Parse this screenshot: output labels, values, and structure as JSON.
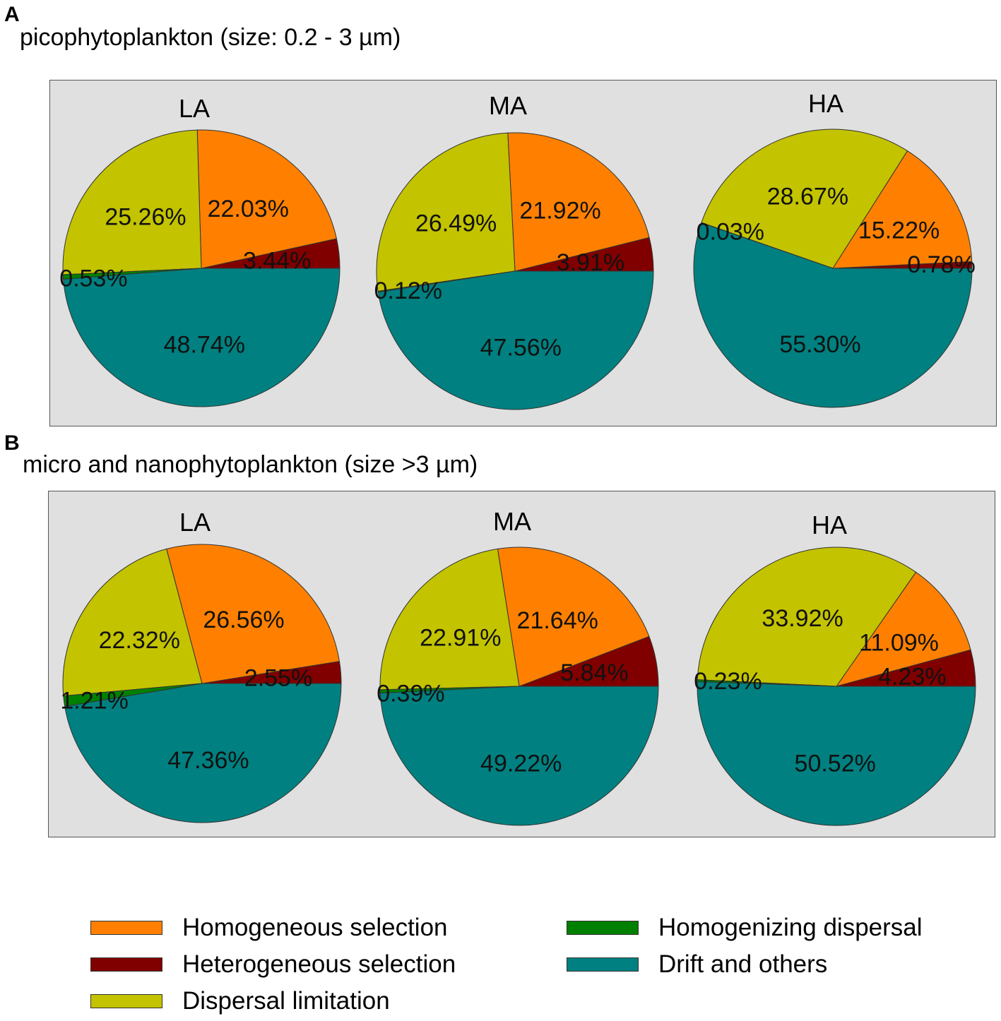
{
  "panels": [
    {
      "letter": "A",
      "title": "picophytoplankton (size: 0.2 - 3 µm)"
    },
    {
      "letter": "B",
      "title": "micro and nanophytoplankton (size >3 µm)"
    }
  ],
  "legend": [
    {
      "label": "Homogeneous selection",
      "color": "#ff8000"
    },
    {
      "label": "Heterogeneous selection",
      "color": "#800000"
    },
    {
      "label": "Dispersal limitation",
      "color": "#c3c300"
    },
    {
      "label": "Homogenizing dispersal",
      "color": "#008000"
    },
    {
      "label": "Drift and others",
      "color": "#008080"
    }
  ],
  "chart_data": [
    {
      "type": "pie",
      "panel": "A",
      "title": "picophytoplankton (size: 0.2 - 3 µm)",
      "pies": [
        {
          "name": "LA",
          "slices": [
            {
              "category": "Homogeneous selection",
              "value": 22.03,
              "label": "22.03%"
            },
            {
              "category": "Heterogeneous selection",
              "value": 3.44,
              "label": "3.44%"
            },
            {
              "category": "Dispersal limitation",
              "value": 25.26,
              "label": "25.26%"
            },
            {
              "category": "Homogenizing dispersal",
              "value": 0.53,
              "label": "0.53%"
            },
            {
              "category": "Drift and others",
              "value": 48.74,
              "label": "48.74%"
            }
          ]
        },
        {
          "name": "MA",
          "slices": [
            {
              "category": "Homogeneous selection",
              "value": 21.92,
              "label": "21.92%"
            },
            {
              "category": "Heterogeneous selection",
              "value": 3.91,
              "label": "3.91%"
            },
            {
              "category": "Dispersal limitation",
              "value": 26.49,
              "label": "26.49%"
            },
            {
              "category": "Homogenizing dispersal",
              "value": 0.12,
              "label": "0.12%"
            },
            {
              "category": "Drift and others",
              "value": 47.56,
              "label": "47.56%"
            }
          ]
        },
        {
          "name": "HA",
          "slices": [
            {
              "category": "Homogeneous selection",
              "value": 15.22,
              "label": "15.22%"
            },
            {
              "category": "Heterogeneous selection",
              "value": 0.78,
              "label": "0.78%"
            },
            {
              "category": "Dispersal limitation",
              "value": 28.67,
              "label": "28.67%"
            },
            {
              "category": "Homogenizing dispersal",
              "value": 0.03,
              "label": "0.03%"
            },
            {
              "category": "Drift and others",
              "value": 55.3,
              "label": "55.30%"
            }
          ]
        }
      ]
    },
    {
      "type": "pie",
      "panel": "B",
      "title": "micro and nanophytoplankton (size >3 µm)",
      "pies": [
        {
          "name": "LA",
          "slices": [
            {
              "category": "Homogeneous selection",
              "value": 26.56,
              "label": "26.56%"
            },
            {
              "category": "Heterogeneous selection",
              "value": 2.55,
              "label": "2.55%"
            },
            {
              "category": "Dispersal limitation",
              "value": 22.32,
              "label": "22.32%"
            },
            {
              "category": "Homogenizing dispersal",
              "value": 1.21,
              "label": "1.21%"
            },
            {
              "category": "Drift and others",
              "value": 47.36,
              "label": "47.36%"
            }
          ]
        },
        {
          "name": "MA",
          "slices": [
            {
              "category": "Homogeneous selection",
              "value": 21.64,
              "label": "21.64%"
            },
            {
              "category": "Heterogeneous selection",
              "value": 5.84,
              "label": "5.84%"
            },
            {
              "category": "Dispersal limitation",
              "value": 22.91,
              "label": "22.91%"
            },
            {
              "category": "Homogenizing dispersal",
              "value": 0.39,
              "label": "0.39%"
            },
            {
              "category": "Drift and others",
              "value": 49.22,
              "label": "49.22%"
            }
          ]
        },
        {
          "name": "HA",
          "slices": [
            {
              "category": "Homogeneous selection",
              "value": 11.09,
              "label": "11.09%"
            },
            {
              "category": "Heterogeneous selection",
              "value": 4.23,
              "label": "4.23%"
            },
            {
              "category": "Dispersal limitation",
              "value": 33.92,
              "label": "33.92%"
            },
            {
              "category": "Homogenizing dispersal",
              "value": 0.23,
              "label": "0.23%"
            },
            {
              "category": "Drift and others",
              "value": 50.52,
              "label": "50.52%"
            }
          ]
        }
      ]
    }
  ]
}
